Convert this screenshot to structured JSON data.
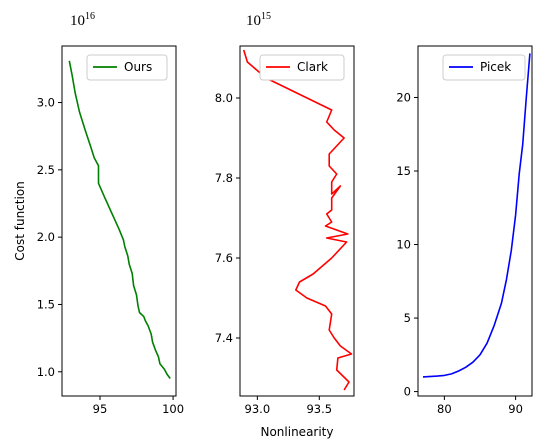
{
  "chart_data": [
    {
      "type": "line",
      "offset_base": "10",
      "offset_exp": "16",
      "ylabel": "Cost function",
      "xlabel": "",
      "xlim": [
        92.4,
        100.2
      ],
      "ylim": [
        0.82,
        3.42
      ],
      "xticks": [
        {
          "v": 95,
          "label": "95"
        },
        {
          "v": 100,
          "label": "100"
        }
      ],
      "yticks": [
        {
          "v": 1.0,
          "label": "1.0"
        },
        {
          "v": 1.5,
          "label": "1.5"
        },
        {
          "v": 2.0,
          "label": "2.0"
        },
        {
          "v": 2.5,
          "label": "2.5"
        },
        {
          "v": 3.0,
          "label": "3.0"
        }
      ],
      "legend": "top-right",
      "series": [
        {
          "name": "Ours",
          "color": "#008000",
          "x": [
            92.9,
            93.1,
            93.3,
            93.6,
            94.0,
            94.4,
            94.6,
            94.9,
            94.9,
            95.3,
            95.8,
            96.3,
            96.6,
            96.7,
            96.9,
            97.0,
            97.2,
            97.3,
            97.5,
            97.6,
            97.7,
            98.0,
            98.1,
            98.3,
            98.5,
            98.6,
            98.8,
            99.0,
            99.1,
            99.4,
            99.6,
            99.8
          ],
          "y": [
            3.31,
            3.2,
            3.07,
            2.93,
            2.79,
            2.66,
            2.59,
            2.53,
            2.4,
            2.3,
            2.18,
            2.06,
            1.98,
            1.93,
            1.86,
            1.8,
            1.73,
            1.64,
            1.57,
            1.49,
            1.44,
            1.41,
            1.38,
            1.34,
            1.28,
            1.22,
            1.16,
            1.11,
            1.06,
            1.02,
            0.98,
            0.95
          ]
        }
      ]
    },
    {
      "type": "line",
      "offset_base": "10",
      "offset_exp": "15",
      "ylabel": "",
      "xlabel": "Nonlinearity",
      "xlim": [
        92.86,
        93.78
      ],
      "ylim": [
        7.255,
        8.13
      ],
      "xticks": [
        {
          "v": 93.0,
          "label": "93.0"
        },
        {
          "v": 93.5,
          "label": "93.5"
        }
      ],
      "yticks": [
        {
          "v": 7.4,
          "label": "7.4"
        },
        {
          "v": 7.6,
          "label": "7.6"
        },
        {
          "v": 7.8,
          "label": "7.8"
        },
        {
          "v": 8.0,
          "label": "8.0"
        }
      ],
      "legend": "top-right",
      "series": [
        {
          "name": "Clark",
          "color": "#ff0000",
          "x": [
            92.89,
            92.92,
            93.07,
            93.6,
            93.56,
            93.62,
            93.7,
            93.58,
            93.58,
            93.64,
            93.6,
            93.6,
            93.67,
            93.6,
            93.6,
            93.56,
            93.6,
            93.55,
            93.73,
            93.56,
            93.72,
            93.6,
            93.45,
            93.34,
            93.31,
            93.4,
            93.55,
            93.6,
            93.58,
            93.62,
            93.67,
            93.76,
            93.65,
            93.64,
            93.74,
            93.7
          ],
          "y": [
            8.12,
            8.09,
            8.05,
            7.97,
            7.94,
            7.92,
            7.9,
            7.86,
            7.83,
            7.81,
            7.79,
            7.76,
            7.78,
            7.75,
            7.72,
            7.71,
            7.69,
            7.68,
            7.66,
            7.65,
            7.64,
            7.6,
            7.56,
            7.54,
            7.52,
            7.5,
            7.48,
            7.46,
            7.42,
            7.4,
            7.38,
            7.36,
            7.35,
            7.32,
            7.29,
            7.27
          ]
        }
      ]
    },
    {
      "type": "line",
      "ylabel": "",
      "xlabel": "",
      "xlim": [
        76.3,
        92.3
      ],
      "ylim": [
        -0.3,
        23.5
      ],
      "xticks": [
        {
          "v": 80,
          "label": "80"
        },
        {
          "v": 90,
          "label": "90"
        }
      ],
      "yticks": [
        {
          "v": 0,
          "label": "0"
        },
        {
          "v": 5,
          "label": "5"
        },
        {
          "v": 10,
          "label": "10"
        },
        {
          "v": 15,
          "label": "15"
        },
        {
          "v": 20,
          "label": "20"
        }
      ],
      "legend": "top-right",
      "series": [
        {
          "name": "Picek",
          "color": "#0000ff",
          "x": [
            77,
            79,
            80,
            81,
            82,
            83,
            84,
            85,
            86,
            87,
            88,
            88.7,
            89.4,
            90,
            90.5,
            91,
            91.5,
            92
          ],
          "y": [
            1.0,
            1.05,
            1.1,
            1.2,
            1.4,
            1.65,
            2.0,
            2.5,
            3.3,
            4.5,
            6.0,
            7.6,
            9.6,
            12.0,
            14.8,
            16.8,
            20.0,
            23.0
          ]
        }
      ]
    }
  ]
}
